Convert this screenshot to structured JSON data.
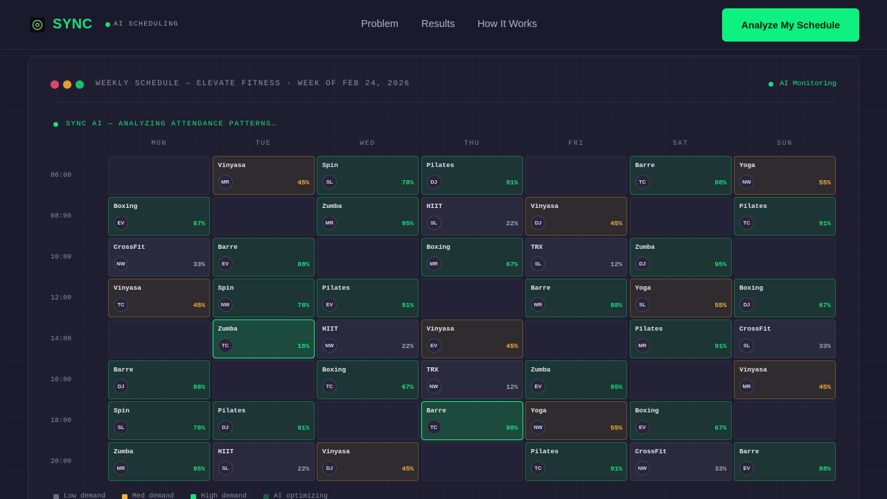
{
  "header": {
    "brand": "SYNC",
    "badge": "AI SCHEDULING",
    "nav": [
      "Problem",
      "Results",
      "How It Works"
    ],
    "cta": "Analyze My Schedule"
  },
  "panel": {
    "title": "WEEKLY SCHEDULE — ELEVATE FITNESS · WEEK OF FEB 24, 2026",
    "monitor": "AI Monitoring",
    "analyzing": "SYNC AI — ANALYZING ATTENDANCE PATTERNS…",
    "window_dot_colors": [
      "#e0446a",
      "#e0a030",
      "#19c26b"
    ]
  },
  "colors": {
    "accent": "#19e07f",
    "low": "#6b6b80",
    "med": "#f0b238",
    "high": "#19e07f",
    "opt": "#1e5a46"
  },
  "days": [
    "MON",
    "TUE",
    "WED",
    "THU",
    "FRI",
    "SAT",
    "SUN"
  ],
  "times": [
    "06:00",
    "08:00",
    "10:00",
    "12:00",
    "14:00",
    "16:00",
    "18:00",
    "20:00"
  ],
  "grid": [
    [
      null,
      {
        "name": "Vinyasa",
        "init": "MR",
        "pct": "45%",
        "level": "med"
      },
      {
        "name": "Spin",
        "init": "SL",
        "pct": "78%",
        "level": "high"
      },
      {
        "name": "Pilates",
        "init": "DJ",
        "pct": "91%",
        "level": "high"
      },
      null,
      {
        "name": "Barre",
        "init": "TC",
        "pct": "88%",
        "level": "high"
      },
      {
        "name": "Yoga",
        "init": "NW",
        "pct": "55%",
        "level": "med"
      }
    ],
    [
      {
        "name": "Boxing",
        "init": "EV",
        "pct": "67%",
        "level": "high"
      },
      null,
      {
        "name": "Zumba",
        "init": "MR",
        "pct": "95%",
        "level": "high"
      },
      {
        "name": "HIIT",
        "init": "SL",
        "pct": "22%",
        "level": "low"
      },
      {
        "name": "Vinyasa",
        "init": "DJ",
        "pct": "45%",
        "level": "med"
      },
      null,
      {
        "name": "Pilates",
        "init": "TC",
        "pct": "91%",
        "level": "high"
      }
    ],
    [
      {
        "name": "CrossFit",
        "init": "NW",
        "pct": "33%",
        "level": "low"
      },
      {
        "name": "Barre",
        "init": "EV",
        "pct": "88%",
        "level": "high"
      },
      null,
      {
        "name": "Boxing",
        "init": "MR",
        "pct": "67%",
        "level": "high"
      },
      {
        "name": "TRX",
        "init": "SL",
        "pct": "12%",
        "level": "low"
      },
      {
        "name": "Zumba",
        "init": "DJ",
        "pct": "95%",
        "level": "high"
      },
      null
    ],
    [
      {
        "name": "Vinyasa",
        "init": "TC",
        "pct": "45%",
        "level": "med"
      },
      {
        "name": "Spin",
        "init": "NW",
        "pct": "78%",
        "level": "high"
      },
      {
        "name": "Pilates",
        "init": "EV",
        "pct": "91%",
        "level": "high"
      },
      null,
      {
        "name": "Barre",
        "init": "MR",
        "pct": "88%",
        "level": "high"
      },
      {
        "name": "Yoga",
        "init": "SL",
        "pct": "55%",
        "level": "med"
      },
      {
        "name": "Boxing",
        "init": "DJ",
        "pct": "67%",
        "level": "high"
      }
    ],
    [
      null,
      {
        "name": "Zumba",
        "init": "TC",
        "pct": "18%",
        "level": "opt"
      },
      {
        "name": "HIIT",
        "init": "NW",
        "pct": "22%",
        "level": "low"
      },
      {
        "name": "Vinyasa",
        "init": "EV",
        "pct": "45%",
        "level": "med"
      },
      null,
      {
        "name": "Pilates",
        "init": "MR",
        "pct": "91%",
        "level": "high"
      },
      {
        "name": "CrossFit",
        "init": "SL",
        "pct": "33%",
        "level": "low"
      }
    ],
    [
      {
        "name": "Barre",
        "init": "DJ",
        "pct": "88%",
        "level": "high"
      },
      null,
      {
        "name": "Boxing",
        "init": "TC",
        "pct": "67%",
        "level": "high"
      },
      {
        "name": "TRX",
        "init": "NW",
        "pct": "12%",
        "level": "low"
      },
      {
        "name": "Zumba",
        "init": "EV",
        "pct": "95%",
        "level": "high"
      },
      null,
      {
        "name": "Vinyasa",
        "init": "MR",
        "pct": "45%",
        "level": "med"
      }
    ],
    [
      {
        "name": "Spin",
        "init": "SL",
        "pct": "78%",
        "level": "high"
      },
      {
        "name": "Pilates",
        "init": "DJ",
        "pct": "91%",
        "level": "high"
      },
      null,
      {
        "name": "Barre",
        "init": "TC",
        "pct": "98%",
        "level": "opt"
      },
      {
        "name": "Yoga",
        "init": "NW",
        "pct": "55%",
        "level": "med"
      },
      {
        "name": "Boxing",
        "init": "EV",
        "pct": "67%",
        "level": "high"
      },
      null
    ],
    [
      {
        "name": "Zumba",
        "init": "MR",
        "pct": "95%",
        "level": "high"
      },
      {
        "name": "HIIT",
        "init": "SL",
        "pct": "22%",
        "level": "low"
      },
      {
        "name": "Vinyasa",
        "init": "DJ",
        "pct": "45%",
        "level": "med"
      },
      null,
      {
        "name": "Pilates",
        "init": "TC",
        "pct": "91%",
        "level": "high"
      },
      {
        "name": "CrossFit",
        "init": "NW",
        "pct": "33%",
        "level": "low"
      },
      {
        "name": "Barre",
        "init": "EV",
        "pct": "88%",
        "level": "high"
      }
    ]
  ],
  "legend": [
    {
      "label": "Low demand",
      "color": "#6b6b80"
    },
    {
      "label": "Med demand",
      "color": "#f0b238"
    },
    {
      "label": "High demand",
      "color": "#19e07f"
    },
    {
      "label": "AI optimizing",
      "color": "#1e5a46"
    }
  ]
}
